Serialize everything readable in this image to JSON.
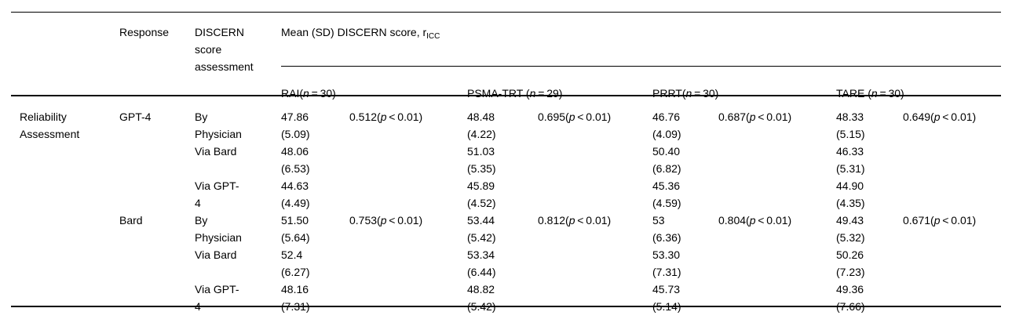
{
  "table": {
    "header": {
      "response": "Response",
      "assessment_lines": [
        "DISCERN",
        "score",
        "assessment"
      ],
      "span_title": [
        "Mean (SD) DISCERN score, r",
        {
          "sub": "ICC"
        }
      ],
      "groups": [
        {
          "label": [
            "RAI(",
            {
              "i": "n"
            },
            " = 30)"
          ]
        },
        {
          "label": [
            "PSMA-TRT (",
            {
              "i": "n"
            },
            " = 29)"
          ]
        },
        {
          "label": [
            "PRRT(",
            {
              "i": "n"
            },
            " = 30)"
          ]
        },
        {
          "label": [
            "TARE (",
            {
              "i": "n"
            },
            " = 30)"
          ]
        }
      ]
    },
    "rows": [
      {
        "section": [
          "Reliability",
          "Assessment"
        ],
        "response": "GPT-4",
        "assessment": [
          "By",
          "Physician"
        ],
        "means": [
          [
            "47.86",
            "(5.09)"
          ],
          [
            "48.48",
            "(4.22)"
          ],
          [
            "46.76",
            "(4.09)"
          ],
          [
            "48.33",
            "(5.15)"
          ]
        ],
        "icc": [
          [
            "0.512(",
            {
              "i": "p"
            },
            " < 0.01)"
          ],
          [
            "0.695(",
            {
              "i": "p"
            },
            " < 0.01)"
          ],
          [
            "0.687(",
            {
              "i": "p"
            },
            " < 0.01)"
          ],
          [
            "0.649(",
            {
              "i": "p"
            },
            " < 0.01)"
          ]
        ]
      },
      {
        "assessment": [
          "Via Bard"
        ],
        "means": [
          [
            "48.06",
            "(6.53)"
          ],
          [
            "51.03",
            "(5.35)"
          ],
          [
            "50.40",
            "(6.82)"
          ],
          [
            "46.33",
            "(5.31)"
          ]
        ]
      },
      {
        "assessment": [
          "Via GPT-",
          "4"
        ],
        "means": [
          [
            "44.63",
            "(4.49)"
          ],
          [
            "45.89",
            "(4.52)"
          ],
          [
            "45.36",
            "(4.59)"
          ],
          [
            "44.90",
            "(4.35)"
          ]
        ]
      },
      {
        "response": "Bard",
        "assessment": [
          "By",
          "Physician"
        ],
        "means": [
          [
            "51.50",
            "(5.64)"
          ],
          [
            "53.44",
            "(5.42)"
          ],
          [
            "53",
            "(6.36)"
          ],
          [
            "49.43",
            "(5.32)"
          ]
        ],
        "icc": [
          [
            "0.753(",
            {
              "i": "p"
            },
            " < 0.01)"
          ],
          [
            "0.812(",
            {
              "i": "p"
            },
            " < 0.01)"
          ],
          [
            "0.804(",
            {
              "i": "p"
            },
            " < 0.01)"
          ],
          [
            "0.671(",
            {
              "i": "p"
            },
            " < 0.01)"
          ]
        ]
      },
      {
        "assessment": [
          "Via Bard"
        ],
        "means": [
          [
            "52.4",
            "(6.27)"
          ],
          [
            "53.34",
            "(6.44)"
          ],
          [
            "53.30",
            "(7.31)"
          ],
          [
            "50.26",
            "(7.23)"
          ]
        ]
      },
      {
        "assessment": [
          "Via GPT-",
          "4"
        ],
        "means": [
          [
            "48.16",
            "(7.31)"
          ],
          [
            "48.82",
            "(5.42)"
          ],
          [
            "45.73",
            "(5.14)"
          ],
          [
            "49.36",
            "(7.66)"
          ]
        ]
      }
    ]
  }
}
